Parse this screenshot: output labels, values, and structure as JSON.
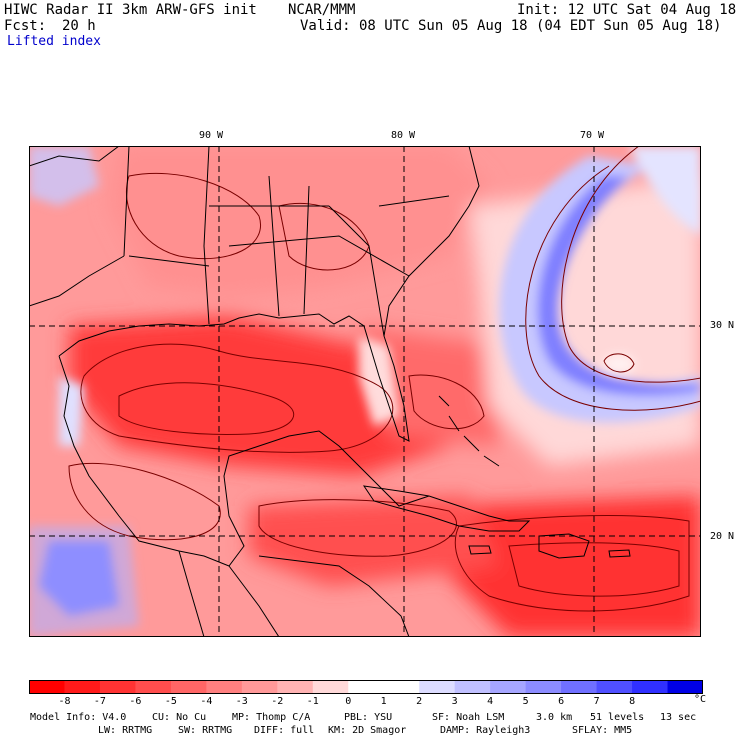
{
  "header": {
    "title": "HIWC Radar II 3km ARW-GFS init",
    "org": "NCAR/MMM",
    "init": "Init: 12 UTC Sat 04 Aug 18",
    "fcst_label": "Fcst:",
    "fcst_value": "20 h",
    "valid": "Valid: 08 UTC Sun 05 Aug 18 (04 EDT Sun 05 Aug 18)",
    "field": "Lifted index"
  },
  "map": {
    "lon_labels": [
      "90 W",
      "80 W",
      "70 W"
    ],
    "lat_labels": [
      "30 N",
      "20 N"
    ],
    "colors": {
      "strong_negative": "#ff1a1a",
      "moderate_negative": "#ff8080",
      "weak_negative": "#ffd0d0",
      "neutral": "#ffffff",
      "weak_positive": "#d8d8ff",
      "moderate_positive": "#8080ff",
      "strong_positive": "#2020ff",
      "contour": "#7a0000",
      "border": "#000000"
    }
  },
  "colorbar": {
    "labels": [
      "-8",
      "-7",
      "-6",
      "-5",
      "-4",
      "-3",
      "-2",
      "-1",
      "0",
      "1",
      "2",
      "3",
      "4",
      "5",
      "6",
      "7",
      "8"
    ],
    "unit": "°C",
    "colors": [
      "#ff0000",
      "#ff1a1a",
      "#ff3333",
      "#ff4d4d",
      "#ff6666",
      "#ff8080",
      "#ff9999",
      "#ffb3b3",
      "#ffd9d9",
      "#ffffff",
      "#ffffff",
      "#dcdcff",
      "#c0c0ff",
      "#a6a6ff",
      "#8c8cff",
      "#7070ff",
      "#5050ff",
      "#3030ff",
      "#0000e6"
    ]
  },
  "footer": {
    "line1": [
      "Model Info: V4.0",
      "CU: No Cu",
      "MP: Thomp C/A",
      "PBL: YSU",
      "SF: Noah LSM",
      "3.0 km",
      "51 levels",
      "13 sec"
    ],
    "line2": [
      "LW: RRTMG",
      "SW: RRTMG",
      "DIFF: full",
      "KM: 2D Smagor",
      "DAMP: Rayleigh3",
      "SFLAY: MM5"
    ]
  }
}
